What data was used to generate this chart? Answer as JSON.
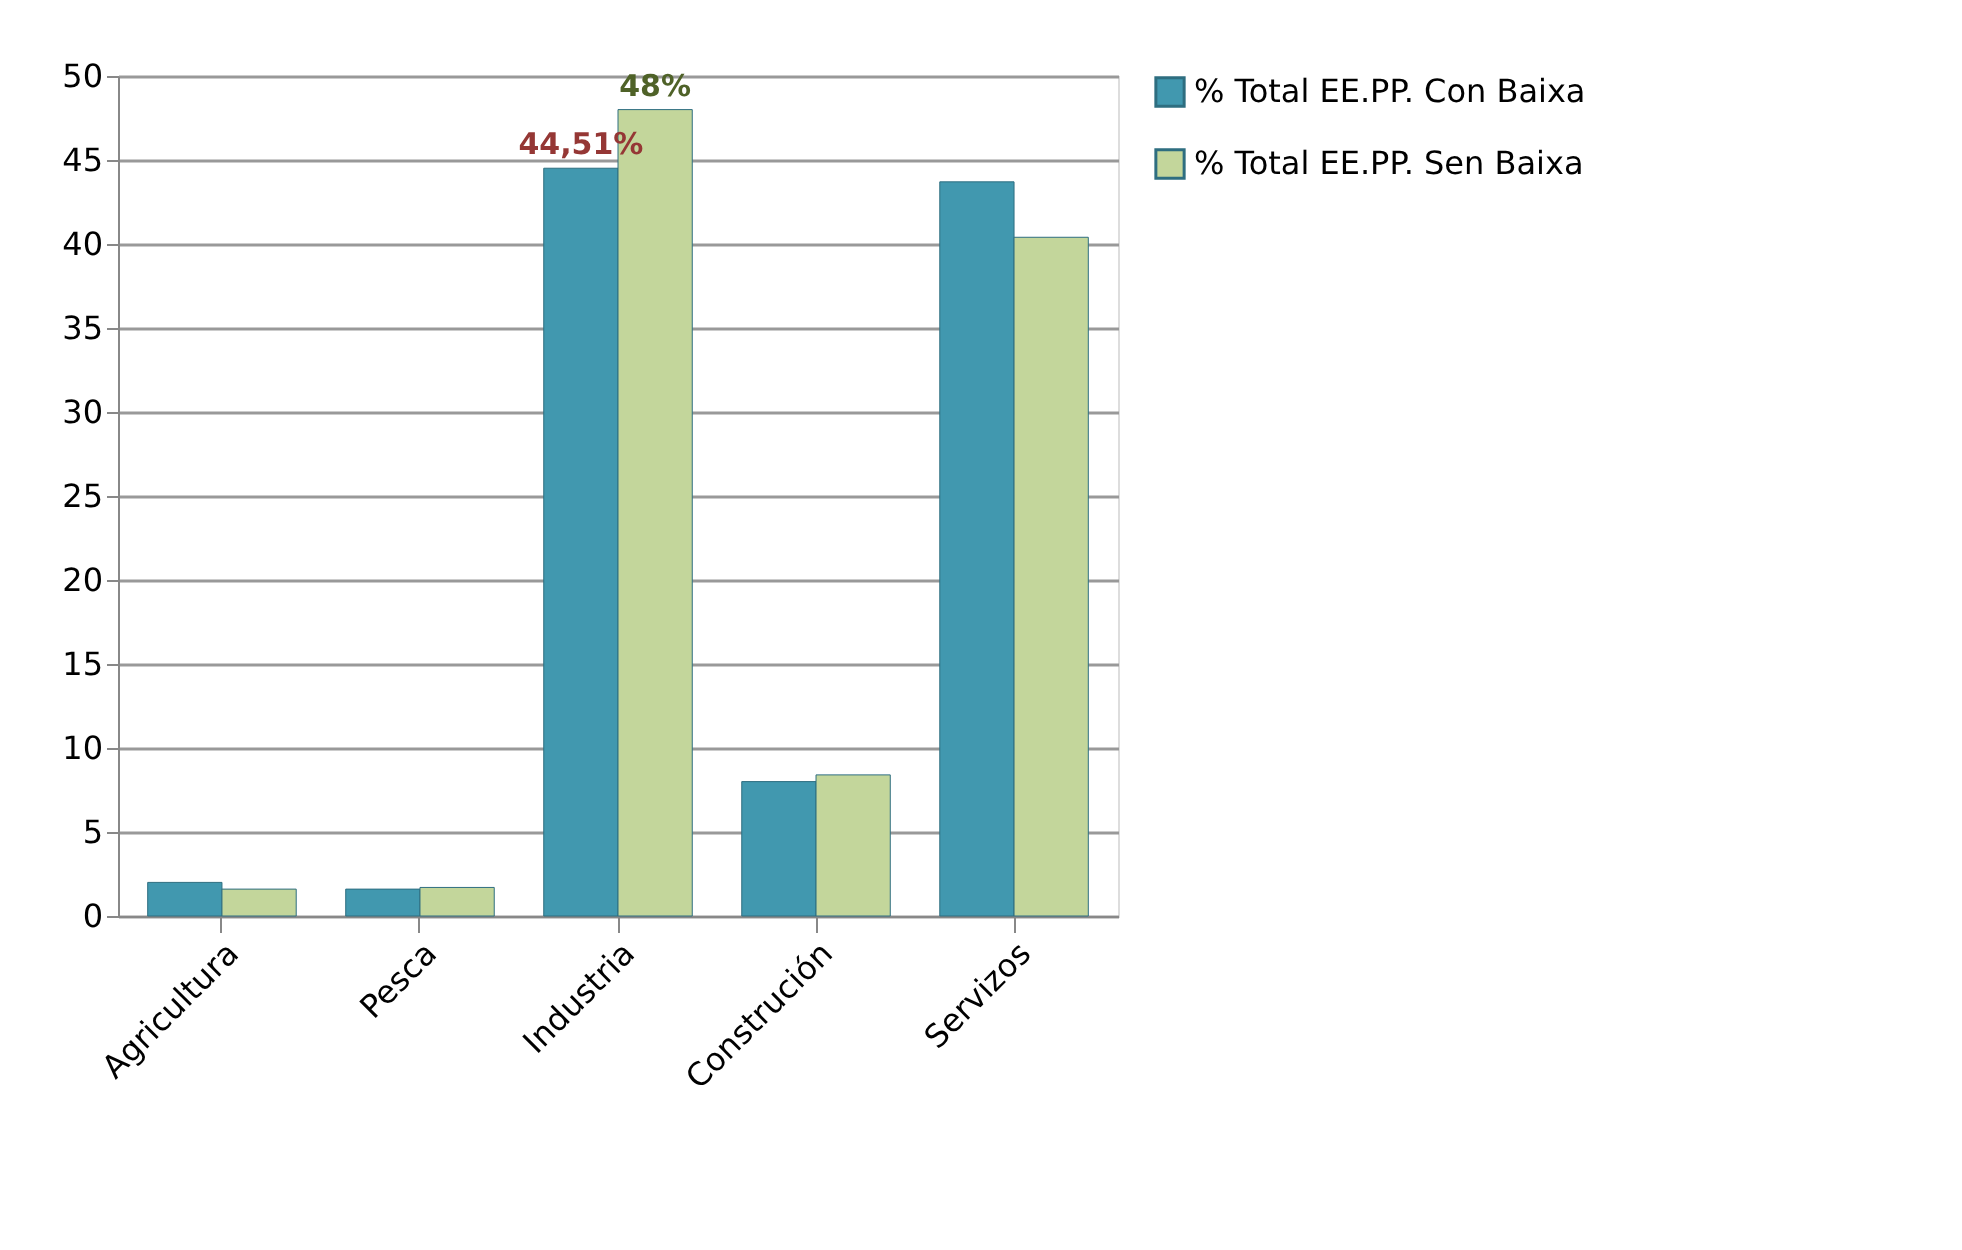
{
  "chart_data": {
    "type": "bar",
    "categories": [
      "Agricultura",
      "Pesca",
      "Industria",
      "Construción",
      "Servizos"
    ],
    "series": [
      {
        "name": "% Total EE.PP. Con Baixa",
        "color": "#4198af",
        "values": [
          2.0,
          1.6,
          44.51,
          8.0,
          43.7
        ],
        "value_labels": [
          null,
          null,
          "44,51%",
          null,
          null
        ]
      },
      {
        "name": "% Total EE.PP. Sen Baixa",
        "color": "#c3d69b",
        "values": [
          1.6,
          1.7,
          48,
          8.4,
          40.4
        ],
        "value_labels": [
          null,
          null,
          "48%",
          null,
          null
        ]
      }
    ],
    "ylim": [
      0,
      50
    ],
    "yticks": [
      0,
      5,
      10,
      15,
      20,
      25,
      30,
      35,
      40,
      45,
      50
    ],
    "grid": "y",
    "legend": "right"
  }
}
